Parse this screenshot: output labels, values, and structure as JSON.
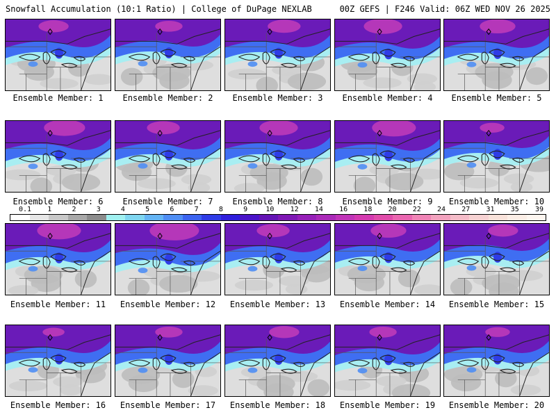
{
  "header": {
    "title": "Snowfall Accumulation (10:1 Ratio) | College of DuPage NEXLAB",
    "run_info": "00Z GEFS | F246 Valid: 06Z WED NOV 26 2025"
  },
  "legend": {
    "ticks": [
      "0.1",
      "1",
      "2",
      "3",
      "4",
      "5",
      "6",
      "7",
      "8",
      "9",
      "10",
      "12",
      "14",
      "16",
      "18",
      "20",
      "22",
      "24",
      "27",
      "31",
      "35",
      "39"
    ],
    "colors": [
      "#ffffff",
      "#e6e6e6",
      "#c8c8c8",
      "#a8a8a8",
      "#8c8c8c",
      "#a0f0f0",
      "#7fd6f0",
      "#64b4f4",
      "#4f8ef4",
      "#3c64f0",
      "#2f3ce6",
      "#2f1edc",
      "#4a14c8",
      "#6414b4",
      "#7e18b4",
      "#9620b8",
      "#aa2ab8",
      "#c034b8",
      "#d43ab0",
      "#e04caa",
      "#ea66b0",
      "#f084b6",
      "#f2a2be",
      "#f4bcc8",
      "#f6d2d2",
      "#f8e2da",
      "#fbeee6",
      "#fdf6f0"
    ]
  },
  "members": [
    {
      "label": "Ensemble Member: 1",
      "intensity": 0.55,
      "south": 0.45
    },
    {
      "label": "Ensemble Member: 2",
      "intensity": 0.5,
      "south": 0.4
    },
    {
      "label": "Ensemble Member: 3",
      "intensity": 0.6,
      "south": 0.45
    },
    {
      "label": "Ensemble Member: 4",
      "intensity": 0.7,
      "south": 0.55
    },
    {
      "label": "Ensemble Member: 5",
      "intensity": 0.65,
      "south": 0.5
    },
    {
      "label": "Ensemble Member: 6",
      "intensity": 0.75,
      "south": 0.55
    },
    {
      "label": "Ensemble Member: 7",
      "intensity": 0.6,
      "south": 0.5
    },
    {
      "label": "Ensemble Member: 8",
      "intensity": 0.7,
      "south": 0.5
    },
    {
      "label": "Ensemble Member: 9",
      "intensity": 0.8,
      "south": 0.6
    },
    {
      "label": "Ensemble Member: 10",
      "intensity": 0.45,
      "south": 0.4
    },
    {
      "label": "Ensemble Member: 11",
      "intensity": 0.8,
      "south": 0.5
    },
    {
      "label": "Ensemble Member: 12",
      "intensity": 0.9,
      "south": 0.7
    },
    {
      "label": "Ensemble Member: 13",
      "intensity": 0.6,
      "south": 0.5
    },
    {
      "label": "Ensemble Member: 14",
      "intensity": 0.65,
      "south": 0.45
    },
    {
      "label": "Ensemble Member: 15",
      "intensity": 0.55,
      "south": 0.4
    },
    {
      "label": "Ensemble Member: 16",
      "intensity": 0.4,
      "south": 0.45
    },
    {
      "label": "Ensemble Member: 17",
      "intensity": 0.5,
      "south": 0.5
    },
    {
      "label": "Ensemble Member: 18",
      "intensity": 0.55,
      "south": 0.5
    },
    {
      "label": "Ensemble Member: 19",
      "intensity": 0.5,
      "south": 0.55
    },
    {
      "label": "Ensemble Member: 20",
      "intensity": 0.45,
      "south": 0.45
    }
  ]
}
